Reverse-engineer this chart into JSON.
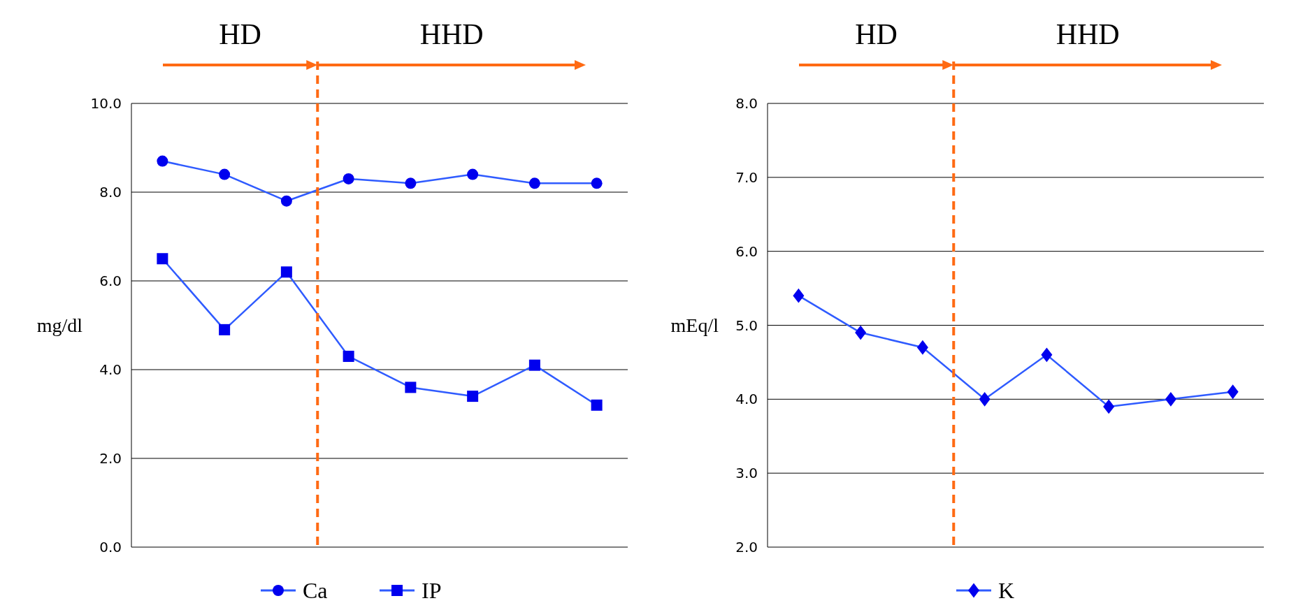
{
  "chart_data": [
    {
      "type": "line",
      "ylabel": "mg/dl",
      "categories": [
        null,
        null,
        null,
        null,
        null,
        null,
        null,
        null
      ],
      "ylim": [
        0,
        10
      ],
      "yticks": [
        {
          "value": 0,
          "label": "0.0"
        },
        {
          "value": 2,
          "label": "2.0"
        },
        {
          "value": 4,
          "label": "4.0"
        },
        {
          "value": 6,
          "label": "6.0"
        },
        {
          "value": 8,
          "label": "8.0"
        },
        {
          "value": 10,
          "label": "10.0"
        }
      ],
      "grid": "y",
      "legend": "bottom",
      "series": [
        {
          "name": "Ca",
          "color": "#2f5bff",
          "marker": "circle",
          "values": [
            8.7,
            8.4,
            7.8,
            8.3,
            8.2,
            8.4,
            8.2,
            8.2
          ]
        },
        {
          "name": "IP",
          "color": "#2f5bff",
          "marker": "square",
          "values": [
            6.5,
            4.9,
            6.2,
            4.3,
            3.6,
            3.4,
            4.1,
            3.2
          ]
        }
      ],
      "annotations": [
        "HD",
        "HHD"
      ]
    },
    {
      "type": "line",
      "ylabel": "mEq/l",
      "categories": [
        null,
        null,
        null,
        null,
        null,
        null,
        null,
        null
      ],
      "ylim": [
        2,
        8
      ],
      "yticks": [
        {
          "value": 2,
          "label": "2.0"
        },
        {
          "value": 3,
          "label": "3.0"
        },
        {
          "value": 4,
          "label": "4.0"
        },
        {
          "value": 5,
          "label": "5.0"
        },
        {
          "value": 6,
          "label": "6.0"
        },
        {
          "value": 7,
          "label": "7.0"
        },
        {
          "value": 8,
          "label": "8.0"
        }
      ],
      "grid": "y",
      "legend": "bottom",
      "series": [
        {
          "name": "K",
          "color": "#2f5bff",
          "marker": "diamond",
          "values": [
            5.4,
            4.9,
            4.7,
            4.0,
            4.6,
            3.9,
            4.0,
            4.1
          ]
        }
      ],
      "annotations": [
        "HD",
        "HHD"
      ]
    }
  ]
}
